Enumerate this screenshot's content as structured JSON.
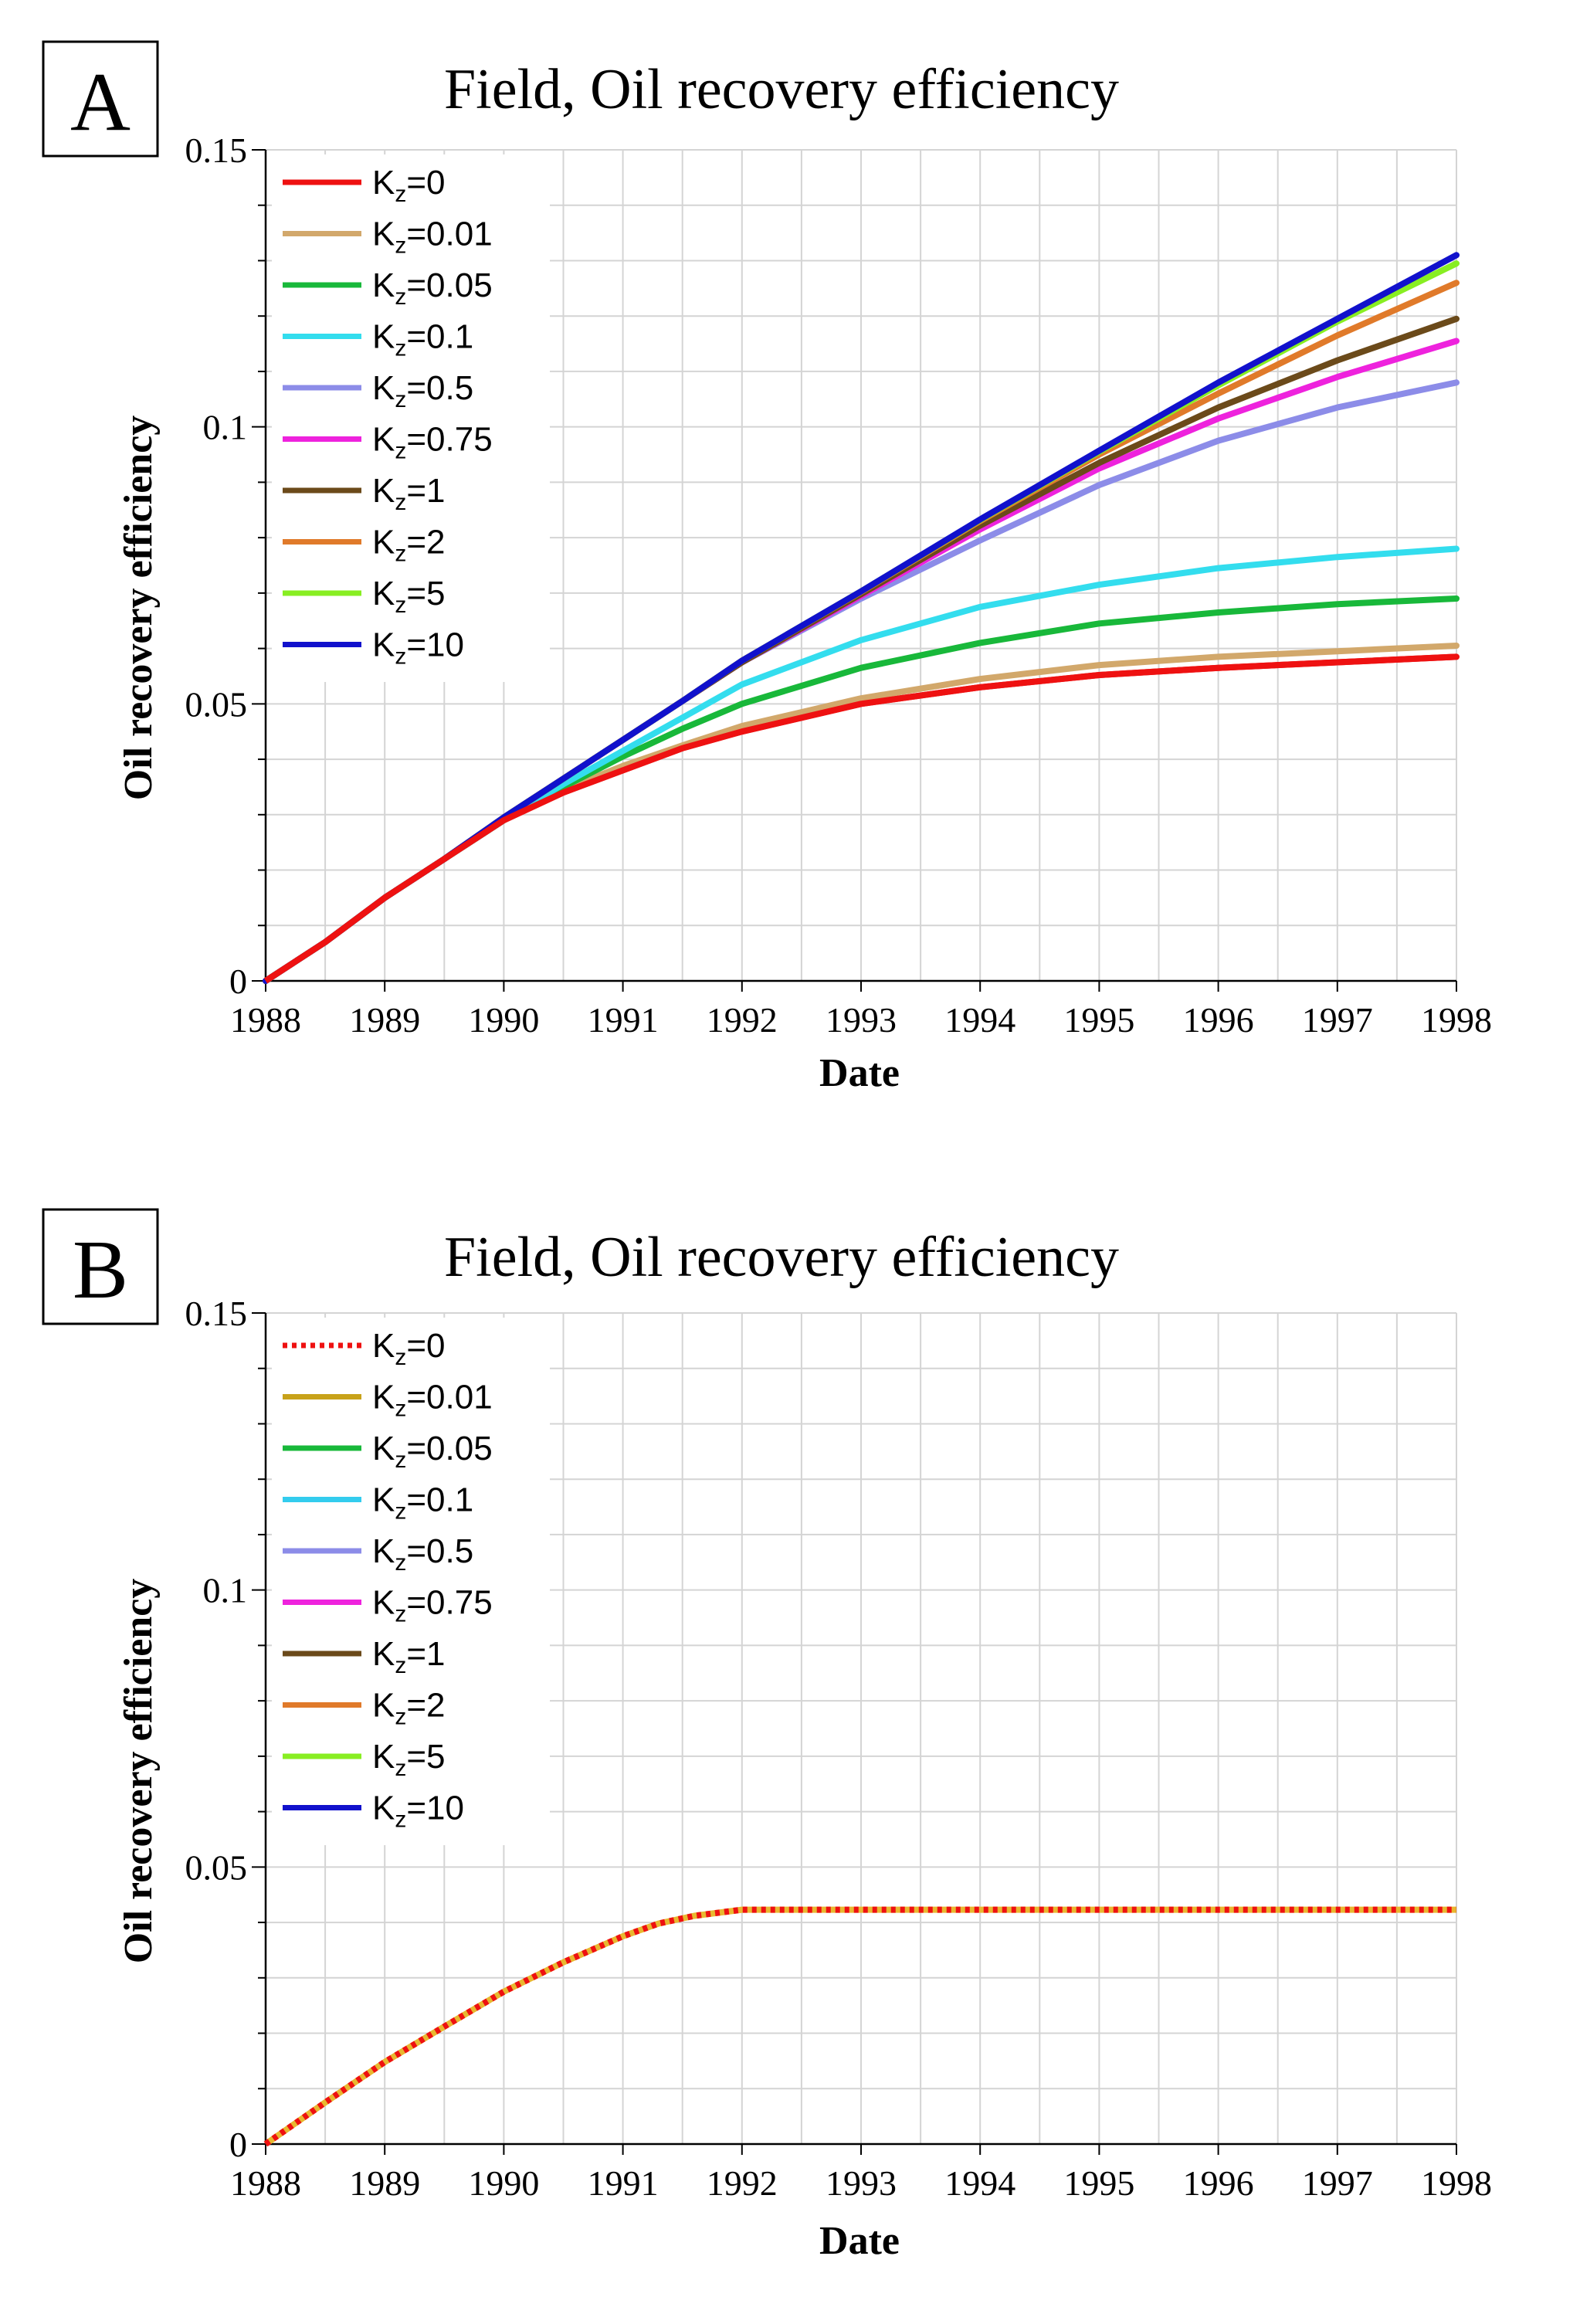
{
  "chart_data": [
    {
      "type": "line",
      "panel_label": "A",
      "title": "Field, Oil recovery efficiency",
      "xlabel": "Date",
      "ylabel": "Oil recovery efficiency",
      "xlim": [
        1988,
        1998
      ],
      "ylim": [
        0,
        0.15
      ],
      "xticks": [
        "1988",
        "1989",
        "1990",
        "1991",
        "1992",
        "1993",
        "1994",
        "1995",
        "1996",
        "1997",
        "1998"
      ],
      "yticks": [
        "0",
        "0.05",
        "0.1",
        "0.15"
      ],
      "grid": true,
      "legend_position": "top-left",
      "series": [
        {
          "name": "K",
          "sub": "z",
          "suffix": "=0",
          "color": "#ee1111",
          "dash": "solid",
          "x": [
            1988,
            1988.5,
            1989,
            1989.5,
            1990,
            1990.5,
            1991,
            1991.5,
            1992,
            1993,
            1994,
            1995,
            1996,
            1997,
            1998
          ],
          "y": [
            0,
            0.007,
            0.015,
            0.022,
            0.029,
            0.034,
            0.038,
            0.042,
            0.045,
            0.05,
            0.053,
            0.0552,
            0.0565,
            0.0575,
            0.0585
          ]
        },
        {
          "name": "K",
          "sub": "z",
          "suffix": "=0.01",
          "color": "#d2a86b",
          "dash": "solid",
          "x": [
            1988,
            1988.5,
            1989,
            1989.5,
            1990,
            1990.5,
            1991,
            1991.5,
            1992,
            1993,
            1994,
            1995,
            1996,
            1997,
            1998
          ],
          "y": [
            0,
            0.007,
            0.015,
            0.022,
            0.029,
            0.0345,
            0.0388,
            0.0425,
            0.046,
            0.051,
            0.0545,
            0.057,
            0.0585,
            0.0595,
            0.0605
          ]
        },
        {
          "name": "K",
          "sub": "z",
          "suffix": "=0.05",
          "color": "#18b83a",
          "dash": "solid",
          "x": [
            1988,
            1988.5,
            1989,
            1989.5,
            1990,
            1990.5,
            1991,
            1991.5,
            1992,
            1993,
            1994,
            1995,
            1996,
            1997,
            1998
          ],
          "y": [
            0,
            0.007,
            0.015,
            0.022,
            0.029,
            0.035,
            0.0405,
            0.0455,
            0.05,
            0.0565,
            0.061,
            0.0645,
            0.0665,
            0.068,
            0.069
          ]
        },
        {
          "name": "K",
          "sub": "z",
          "suffix": "=0.1",
          "color": "#33ddee",
          "dash": "solid",
          "x": [
            1988,
            1988.5,
            1989,
            1989.5,
            1990,
            1990.5,
            1991,
            1991.5,
            1992,
            1993,
            1994,
            1995,
            1996,
            1997,
            1998
          ],
          "y": [
            0,
            0.007,
            0.015,
            0.022,
            0.029,
            0.0355,
            0.0415,
            0.0475,
            0.0535,
            0.0615,
            0.0675,
            0.0715,
            0.0745,
            0.0765,
            0.078
          ]
        },
        {
          "name": "K",
          "sub": "z",
          "suffix": "=0.5",
          "color": "#8c8ce8",
          "dash": "solid",
          "x": [
            1988,
            1988.5,
            1989,
            1989.5,
            1990,
            1990.5,
            1991,
            1991.5,
            1992,
            1993,
            1994,
            1995,
            1996,
            1997,
            1998
          ],
          "y": [
            0,
            0.007,
            0.015,
            0.022,
            0.0295,
            0.0365,
            0.0435,
            0.0505,
            0.0575,
            0.069,
            0.0795,
            0.0895,
            0.0975,
            0.1035,
            0.108
          ]
        },
        {
          "name": "K",
          "sub": "z",
          "suffix": "=0.75",
          "color": "#ee22dd",
          "dash": "solid",
          "x": [
            1988,
            1988.5,
            1989,
            1989.5,
            1990,
            1990.5,
            1991,
            1991.5,
            1992,
            1993,
            1994,
            1995,
            1996,
            1997,
            1998
          ],
          "y": [
            0,
            0.007,
            0.015,
            0.022,
            0.0295,
            0.0365,
            0.0435,
            0.0505,
            0.0575,
            0.0695,
            0.0815,
            0.0925,
            0.1015,
            0.109,
            0.1155
          ]
        },
        {
          "name": "K",
          "sub": "z",
          "suffix": "=1",
          "color": "#6b4a1a",
          "dash": "solid",
          "x": [
            1988,
            1988.5,
            1989,
            1989.5,
            1990,
            1990.5,
            1991,
            1991.5,
            1992,
            1993,
            1994,
            1995,
            1996,
            1997,
            1998
          ],
          "y": [
            0,
            0.007,
            0.015,
            0.022,
            0.0295,
            0.0365,
            0.0435,
            0.0505,
            0.0575,
            0.0698,
            0.0822,
            0.0935,
            0.1035,
            0.112,
            0.1195
          ]
        },
        {
          "name": "K",
          "sub": "z",
          "suffix": "=2",
          "color": "#e07a2a",
          "dash": "solid",
          "x": [
            1988,
            1988.5,
            1989,
            1989.5,
            1990,
            1990.5,
            1991,
            1991.5,
            1992,
            1993,
            1994,
            1995,
            1996,
            1997,
            1998
          ],
          "y": [
            0,
            0.007,
            0.015,
            0.022,
            0.0295,
            0.0365,
            0.0435,
            0.0505,
            0.0578,
            0.0702,
            0.083,
            0.095,
            0.106,
            0.1165,
            0.126
          ]
        },
        {
          "name": "K",
          "sub": "z",
          "suffix": "=5",
          "color": "#88ee22",
          "dash": "solid",
          "x": [
            1988,
            1988.5,
            1989,
            1989.5,
            1990,
            1990.5,
            1991,
            1991.5,
            1992,
            1993,
            1994,
            1995,
            1996,
            1997,
            1998
          ],
          "y": [
            0,
            0.007,
            0.015,
            0.022,
            0.0295,
            0.0365,
            0.0435,
            0.0505,
            0.0578,
            0.0703,
            0.0832,
            0.0955,
            0.1075,
            0.119,
            0.1295
          ]
        },
        {
          "name": "K",
          "sub": "z",
          "suffix": "=10",
          "color": "#1111cc",
          "dash": "solid",
          "x": [
            1988,
            1988.5,
            1989,
            1989.5,
            1990,
            1990.5,
            1991,
            1991.5,
            1992,
            1993,
            1994,
            1995,
            1996,
            1997,
            1998
          ],
          "y": [
            0,
            0.007,
            0.015,
            0.022,
            0.0295,
            0.0365,
            0.0435,
            0.0505,
            0.0578,
            0.0703,
            0.0833,
            0.0957,
            0.108,
            0.1195,
            0.131
          ]
        }
      ]
    },
    {
      "type": "line",
      "panel_label": "B",
      "title": "Field, Oil recovery efficiency",
      "xlabel": "Date",
      "ylabel": "Oil recovery efficiency",
      "xlim": [
        1988,
        1998
      ],
      "ylim": [
        0,
        0.15
      ],
      "xticks": [
        "1988",
        "1989",
        "1990",
        "1991",
        "1992",
        "1993",
        "1994",
        "1995",
        "1996",
        "1997",
        "1998"
      ],
      "yticks": [
        "0",
        "0.05",
        "0.1",
        "0.15"
      ],
      "grid": true,
      "legend_position": "top-left",
      "shared_curve": {
        "x": [
          1988,
          1988.5,
          1989,
          1989.5,
          1990,
          1990.5,
          1991,
          1991.3,
          1991.6,
          1992,
          1994,
          1996,
          1998
        ],
        "y": [
          0,
          0.0075,
          0.0148,
          0.0212,
          0.0275,
          0.0328,
          0.0375,
          0.0398,
          0.0412,
          0.0423,
          0.0423,
          0.0423,
          0.0423
        ]
      },
      "series": [
        {
          "name": "K",
          "sub": "z",
          "suffix": "=0",
          "color": "#ee1111",
          "dash": "dotted"
        },
        {
          "name": "K",
          "sub": "z",
          "suffix": "=0.01",
          "color": "#c8a21a",
          "dash": "solid"
        },
        {
          "name": "K",
          "sub": "z",
          "suffix": "=0.05",
          "color": "#18b83a",
          "dash": "solid"
        },
        {
          "name": "K",
          "sub": "z",
          "suffix": "=0.1",
          "color": "#33ccee",
          "dash": "solid"
        },
        {
          "name": "K",
          "sub": "z",
          "suffix": "=0.5",
          "color": "#8c8ce8",
          "dash": "solid"
        },
        {
          "name": "K",
          "sub": "z",
          "suffix": "=0.75",
          "color": "#ee22dd",
          "dash": "solid"
        },
        {
          "name": "K",
          "sub": "z",
          "suffix": "=1",
          "color": "#6b4a1a",
          "dash": "solid"
        },
        {
          "name": "K",
          "sub": "z",
          "suffix": "=2",
          "color": "#e07a2a",
          "dash": "solid"
        },
        {
          "name": "K",
          "sub": "z",
          "suffix": "=5",
          "color": "#88ee22",
          "dash": "solid"
        },
        {
          "name": "K",
          "sub": "z",
          "suffix": "=10",
          "color": "#1111cc",
          "dash": "solid"
        }
      ],
      "underlay_color": "#e8b830"
    }
  ]
}
